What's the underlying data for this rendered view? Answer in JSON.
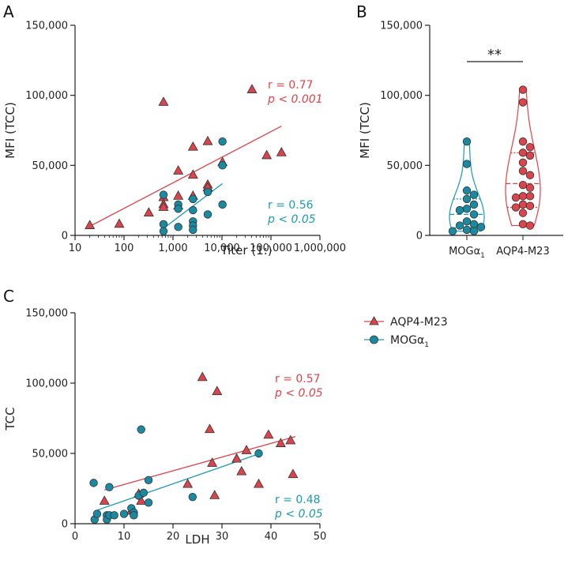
{
  "colors": {
    "aqp4": "#e0424a",
    "mog": "#1b9ab4",
    "aqp4_fill": "#d9454a",
    "mog_fill": "#1a8aa3"
  },
  "legend": {
    "aqp4": "AQP4-M23",
    "mog": "MOGα",
    "mog_sub": "1"
  },
  "chart_data": [
    {
      "panel": "A",
      "type": "scatter",
      "xscale": "log",
      "xlabel": "Titer (1:)",
      "ylabel": "MFI (TCC)",
      "xlim": [
        10,
        1000000
      ],
      "ylim": [
        0,
        150000
      ],
      "xticks": [
        10,
        100,
        1000,
        10000,
        100000,
        1000000
      ],
      "xtick_labels": [
        "10",
        "100",
        "1,000",
        "10,000",
        "100,000",
        "1,000,000"
      ],
      "yticks": [
        0,
        50000,
        100000,
        150000
      ],
      "ytick_labels": [
        "0",
        "50,000",
        "100,000",
        "150,000"
      ],
      "series": [
        {
          "name": "AQP4-M23",
          "marker": "triangle",
          "points": [
            [
              20,
              7000
            ],
            [
              80,
              8000
            ],
            [
              320,
              16000
            ],
            [
              640,
              95000
            ],
            [
              640,
              27000
            ],
            [
              640,
              22000
            ],
            [
              640,
              20000
            ],
            [
              1280,
              46000
            ],
            [
              1280,
              28000
            ],
            [
              1280,
              21000
            ],
            [
              2560,
              63000
            ],
            [
              2560,
              43000
            ],
            [
              2560,
              28000
            ],
            [
              5120,
              67000
            ],
            [
              5120,
              36000
            ],
            [
              5120,
              34000
            ],
            [
              10240,
              52000
            ],
            [
              40960,
              104000
            ],
            [
              81920,
              57000
            ],
            [
              163840,
              59000
            ]
          ],
          "fit": [
            [
              20,
              6500
            ],
            [
              163840,
              78000
            ]
          ],
          "r_label": "r = 0.77",
          "p_label": "p < 0.001"
        },
        {
          "name": "MOGα1",
          "marker": "circle",
          "points": [
            [
              640,
              29000
            ],
            [
              640,
              8000
            ],
            [
              640,
              3000
            ],
            [
              1280,
              22000
            ],
            [
              1280,
              19000
            ],
            [
              1280,
              6000
            ],
            [
              2560,
              26000
            ],
            [
              2560,
              18000
            ],
            [
              2560,
              10000
            ],
            [
              2560,
              7000
            ],
            [
              2560,
              4000
            ],
            [
              5120,
              31000
            ],
            [
              5120,
              15000
            ],
            [
              10240,
              67000
            ],
            [
              10240,
              50000
            ],
            [
              10240,
              22000
            ]
          ],
          "fit": [
            [
              640,
              5000
            ],
            [
              10240,
              37000
            ]
          ],
          "r_label": "r = 0.56",
          "p_label": "p < 0.05"
        }
      ]
    },
    {
      "panel": "B",
      "type": "violin",
      "ylabel": "MFI (TCC)",
      "ylim": [
        0,
        150000
      ],
      "yticks": [
        0,
        50000,
        100000,
        150000
      ],
      "ytick_labels": [
        "0",
        "50,000",
        "100,000",
        "150,000"
      ],
      "categories": [
        "MOGα1",
        "AQP4-M23"
      ],
      "category_labels": [
        {
          "main": "MOGα",
          "sub": "1"
        },
        {
          "main": "AQP4-M23",
          "sub": ""
        }
      ],
      "significance": "**",
      "series": [
        {
          "name": "MOGα1",
          "values": [
            67000,
            51000,
            32000,
            29000,
            26000,
            22000,
            19000,
            18000,
            15000,
            10000,
            8000,
            7000,
            6000,
            4000,
            3000,
            3000
          ],
          "median": 15000,
          "q1": 5500,
          "q3": 26000,
          "min": 3000,
          "max": 67000
        },
        {
          "name": "AQP4-M23",
          "values": [
            104000,
            95000,
            67000,
            63000,
            59000,
            57000,
            52000,
            46000,
            43000,
            36000,
            34000,
            28000,
            28000,
            27000,
            22000,
            21000,
            20000,
            16000,
            8000,
            7000
          ],
          "median": 37000,
          "q1": 20000,
          "q3": 59000,
          "min": 7000,
          "max": 104000
        }
      ]
    },
    {
      "panel": "C",
      "type": "scatter",
      "xlabel": "LDH",
      "ylabel": "TCC",
      "xlim": [
        0,
        50
      ],
      "ylim": [
        0,
        150000
      ],
      "xticks": [
        0,
        10,
        20,
        30,
        40,
        50
      ],
      "xtick_labels": [
        "0",
        "10",
        "20",
        "30",
        "40",
        "50"
      ],
      "yticks": [
        0,
        50000,
        100000,
        150000
      ],
      "ytick_labels": [
        "0",
        "50,000",
        "100,000",
        "150,000"
      ],
      "series": [
        {
          "name": "AQP4-M23",
          "marker": "triangle",
          "points": [
            [
              6,
              16000
            ],
            [
              11.5,
              9000
            ],
            [
              13,
              21000
            ],
            [
              13.5,
              16000
            ],
            [
              23,
              28000
            ],
            [
              26,
              104000
            ],
            [
              27.5,
              67000
            ],
            [
              28,
              43000
            ],
            [
              28.5,
              20000
            ],
            [
              29,
              94000
            ],
            [
              33,
              46000
            ],
            [
              34,
              37000
            ],
            [
              35,
              52000
            ],
            [
              37.5,
              28000
            ],
            [
              39.5,
              63000
            ],
            [
              42,
              57000
            ],
            [
              44,
              59000
            ],
            [
              44.5,
              35000
            ]
          ],
          "fit": [
            [
              6,
              24000
            ],
            [
              45,
              62000
            ]
          ],
          "r_label": "r = 0.57",
          "p_label": "p < 0.05"
        },
        {
          "name": "MOGα1",
          "marker": "circle",
          "points": [
            [
              3.8,
              29000
            ],
            [
              4,
              3000
            ],
            [
              4.5,
              7000
            ],
            [
              6.5,
              6000
            ],
            [
              6.5,
              3000
            ],
            [
              7,
              26000
            ],
            [
              7,
              6000
            ],
            [
              8,
              6000
            ],
            [
              10,
              7000
            ],
            [
              11.5,
              11000
            ],
            [
              12,
              8000
            ],
            [
              12,
              6000
            ],
            [
              13,
              20000
            ],
            [
              13.5,
              67000
            ],
            [
              14,
              22000
            ],
            [
              15,
              31000
            ],
            [
              15,
              15000
            ],
            [
              24,
              19000
            ],
            [
              37.5,
              50000
            ]
          ],
          "fit": [
            [
              4,
              9000
            ],
            [
              37,
              49000
            ]
          ],
          "r_label": "r = 0.48",
          "p_label": "p < 0.05"
        }
      ]
    }
  ],
  "panels": {
    "a": "A",
    "b": "B",
    "c": "C"
  }
}
